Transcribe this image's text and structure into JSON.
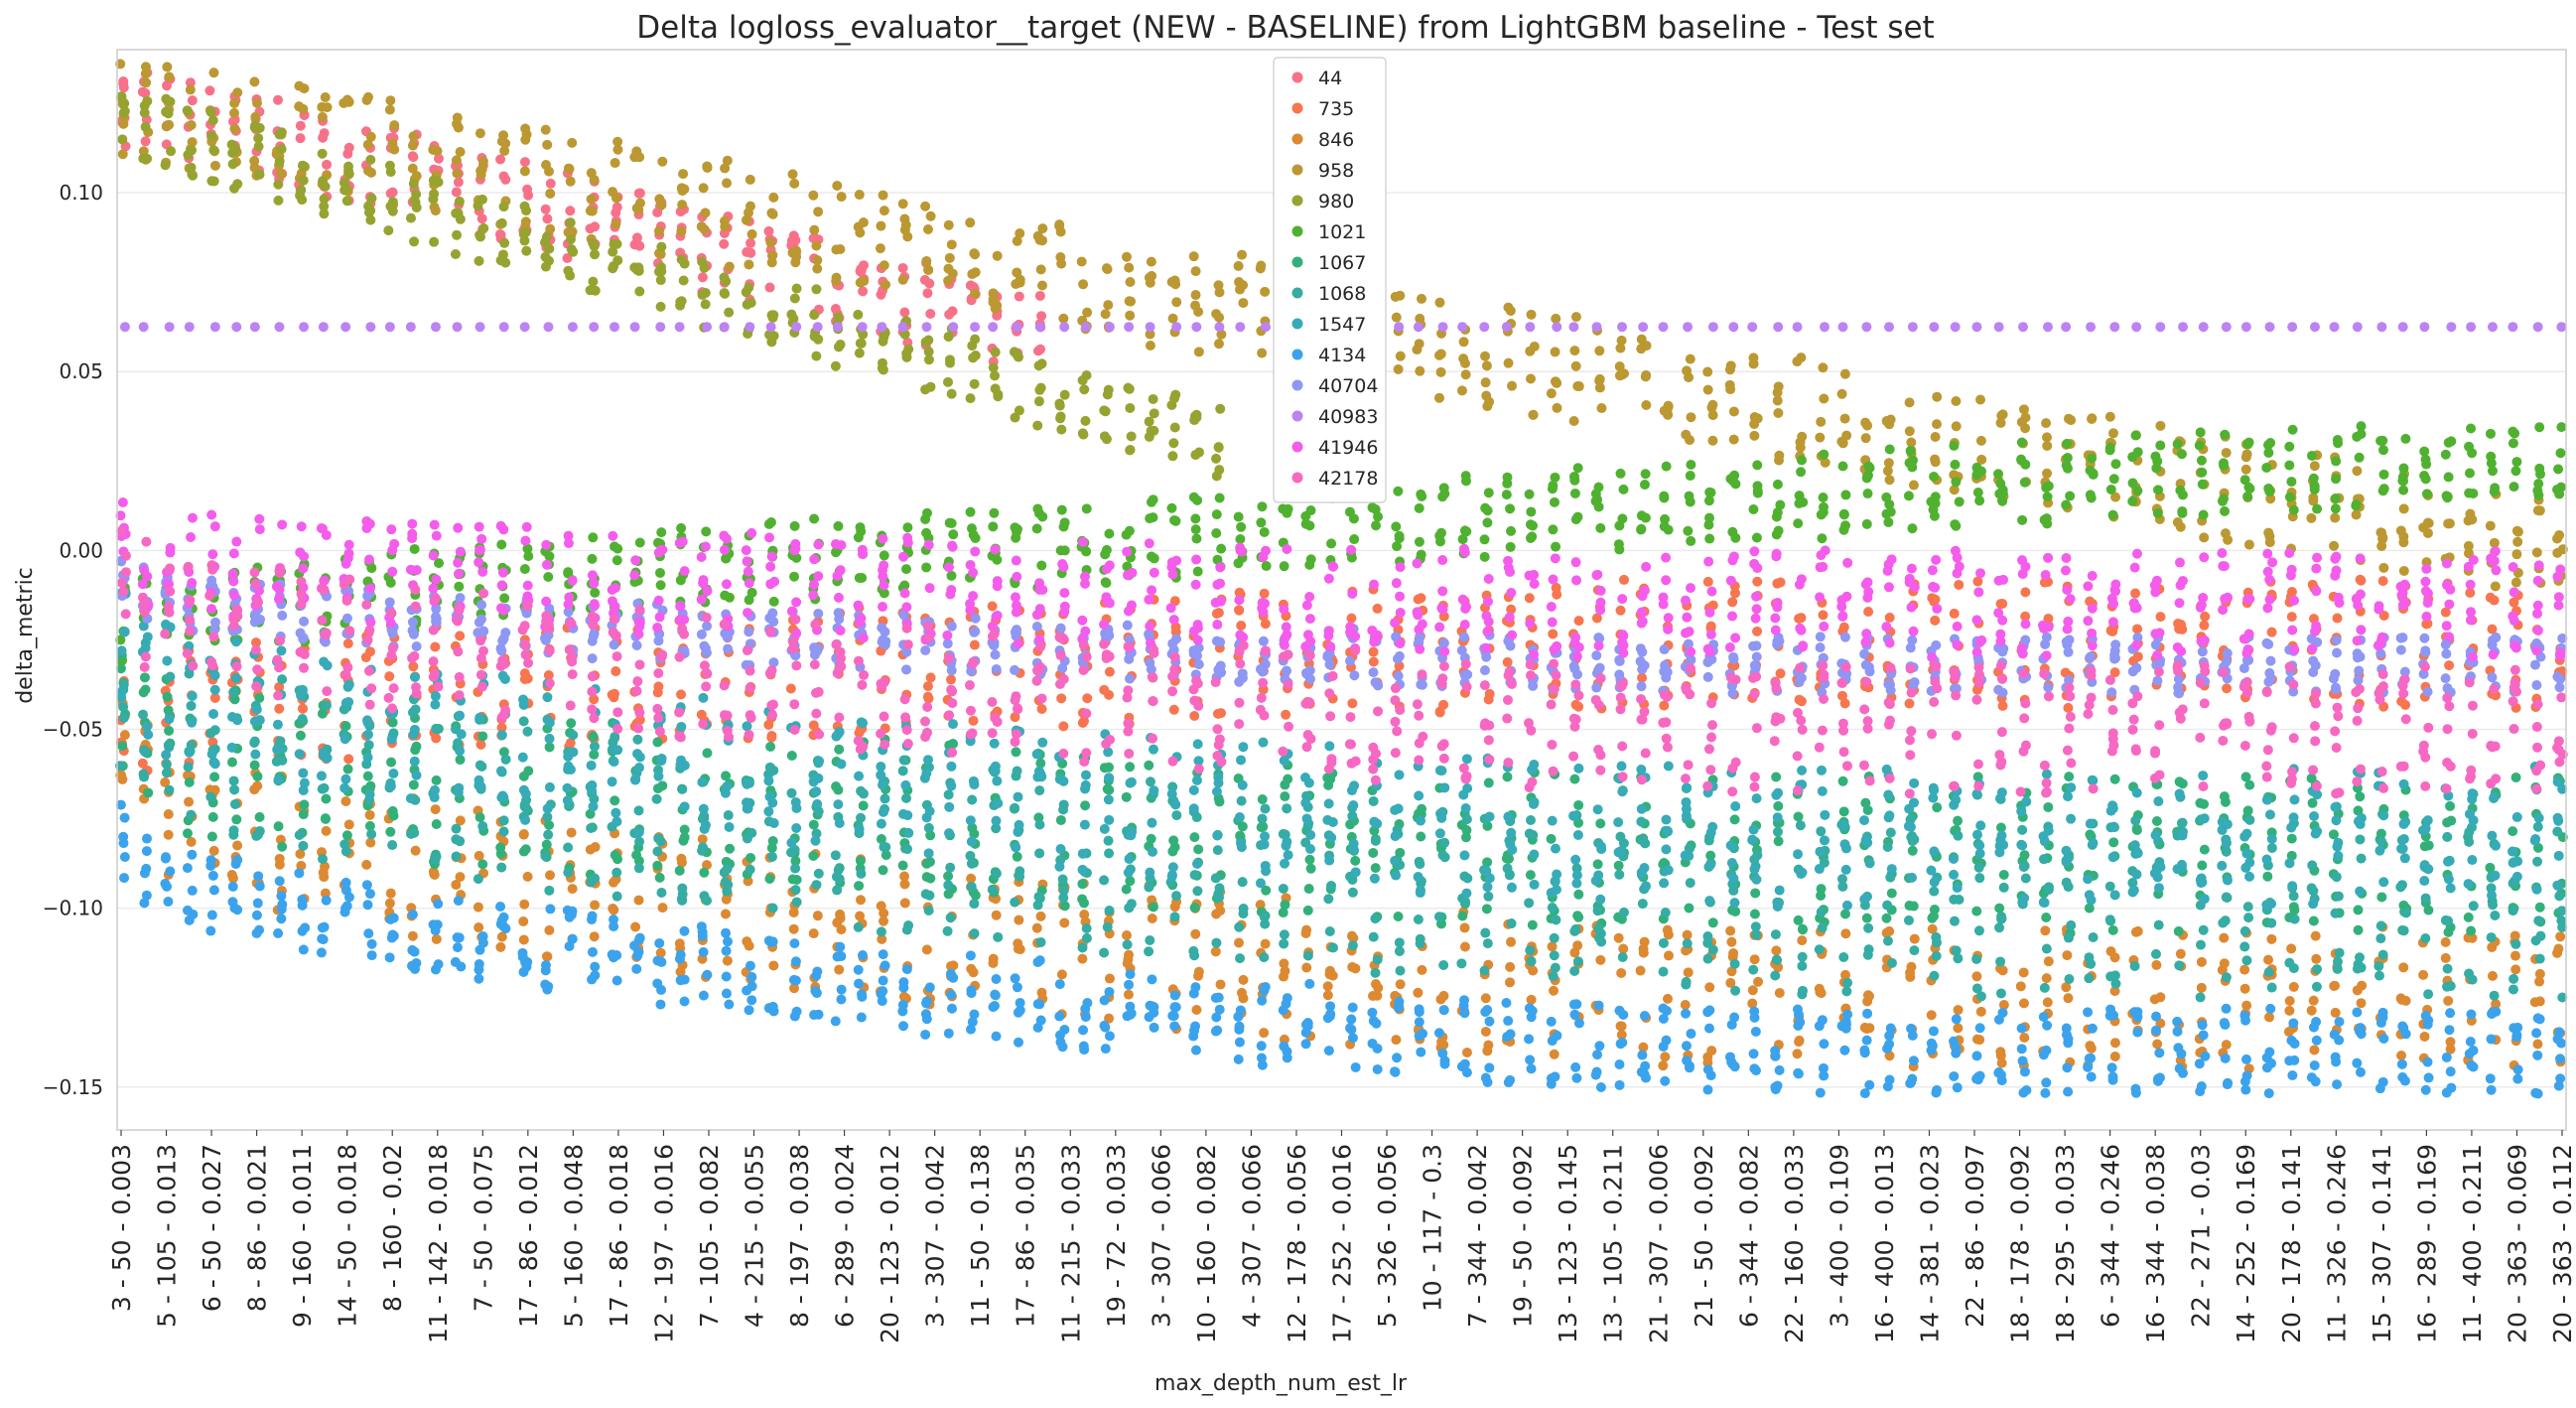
{
  "chart_data": {
    "type": "scatter",
    "title": "Delta logloss_evaluator__target (NEW - BASELINE) from LightGBM baseline - Test set",
    "xlabel": "max_depth_num_est_lr",
    "ylabel": "delta_metric",
    "ylim": [
      -0.162,
      0.14
    ],
    "y_ticks": [
      0.1,
      0.05,
      0.0,
      -0.05,
      -0.1,
      -0.15
    ],
    "y_tick_labels": [
      "0.10",
      "0.05",
      "0.00",
      "−0.05",
      "−0.10",
      "−0.15"
    ],
    "grid": "horizontal",
    "legend_position": "top-center",
    "x_tick_labels": [
      "3 - 50 - 0.003",
      "5 - 105 - 0.013",
      "6 - 50 - 0.027",
      "8 - 86 - 0.021",
      "9 - 160 - 0.011",
      "14 - 50 - 0.018",
      "8 - 160 - 0.02",
      "11 - 142 - 0.018",
      "7 - 50 - 0.075",
      "17 - 86 - 0.012",
      "5 - 160 - 0.048",
      "17 - 86 - 0.018",
      "12 - 197 - 0.016",
      "7 - 105 - 0.082",
      "4 - 215 - 0.055",
      "8 - 197 - 0.038",
      "6 - 289 - 0.024",
      "20 - 123 - 0.012",
      "3 - 307 - 0.042",
      "11 - 50 - 0.138",
      "17 - 86 - 0.035",
      "11 - 215 - 0.033",
      "19 - 72 - 0.033",
      "3 - 307 - 0.066",
      "10 - 160 - 0.082",
      "4 - 307 - 0.066",
      "12 - 178 - 0.056",
      "17 - 252 - 0.016",
      "5 - 326 - 0.056",
      "10 - 117 - 0.3",
      "7 - 344 - 0.042",
      "19 - 50 - 0.092",
      "13 - 123 - 0.145",
      "13 - 105 - 0.211",
      "21 - 307 - 0.006",
      "21 - 50 - 0.092",
      "6 - 344 - 0.082",
      "22 - 160 - 0.033",
      "3 - 400 - 0.109",
      "16 - 400 - 0.013",
      "14 - 381 - 0.023",
      "22 - 86 - 0.097",
      "18 - 178 - 0.092",
      "18 - 295 - 0.033",
      "6 - 344 - 0.246",
      "16 - 344 - 0.038",
      "22 - 271 - 0.03",
      "14 - 252 - 0.169",
      "20 - 178 - 0.141",
      "11 - 326 - 0.246",
      "15 - 307 - 0.141",
      "16 - 289 - 0.169",
      "11 - 400 - 0.211",
      "20 - 363 - 0.069",
      "20 - 363 - 0.112"
    ],
    "series": [
      {
        "name": "44",
        "color": "#f77189",
        "pattern": "decay",
        "start": 0.125,
        "end": 0.06,
        "spread": 0.012,
        "cols": 0.38
      },
      {
        "name": "735",
        "color": "#f7754f",
        "pattern": "band",
        "start": -0.05,
        "end": -0.026,
        "spread": 0.018,
        "cols": 1.0
      },
      {
        "name": "846",
        "color": "#dc8932",
        "pattern": "band",
        "start": -0.06,
        "end": -0.125,
        "spread": 0.02,
        "cols": 1.0
      },
      {
        "name": "958",
        "color": "#bb9832",
        "pattern": "decay",
        "start": 0.125,
        "end": 0.0,
        "spread": 0.015,
        "cols": 1.0
      },
      {
        "name": "980",
        "color": "#96a331",
        "pattern": "decay",
        "start": 0.12,
        "end": 0.03,
        "spread": 0.01,
        "cols": 0.45
      },
      {
        "name": "1021",
        "color": "#50b131",
        "pattern": "rise",
        "start": -0.02,
        "end": 0.027,
        "spread": 0.012,
        "cols": 1.0
      },
      {
        "name": "1067",
        "color": "#33b07a",
        "pattern": "band",
        "start": -0.05,
        "end": -0.085,
        "spread": 0.022,
        "cols": 1.0
      },
      {
        "name": "1068",
        "color": "#35aca4",
        "pattern": "band",
        "start": -0.04,
        "end": -0.1,
        "spread": 0.025,
        "cols": 1.0
      },
      {
        "name": "1547",
        "color": "#37abb8",
        "pattern": "band",
        "start": -0.03,
        "end": -0.08,
        "spread": 0.02,
        "cols": 1.0
      },
      {
        "name": "4134",
        "color": "#3ba3ec",
        "pattern": "band",
        "start": -0.08,
        "end": -0.14,
        "spread": 0.012,
        "cols": 1.0
      },
      {
        "name": "40704",
        "color": "#8e97f3",
        "pattern": "band",
        "start": -0.01,
        "end": -0.032,
        "spread": 0.008,
        "cols": 1.0
      },
      {
        "name": "40983",
        "color": "#bb83f4",
        "pattern": "flat",
        "start": 0.0625,
        "end": 0.0625,
        "spread": 0.0,
        "cols": 1.0
      },
      {
        "name": "41946",
        "color": "#f45deb",
        "pattern": "band",
        "start": 0.0,
        "end": -0.015,
        "spread": 0.015,
        "cols": 1.0
      },
      {
        "name": "42178",
        "color": "#f668c2",
        "pattern": "band",
        "start": -0.01,
        "end": -0.05,
        "spread": 0.018,
        "cols": 1.0
      }
    ]
  }
}
